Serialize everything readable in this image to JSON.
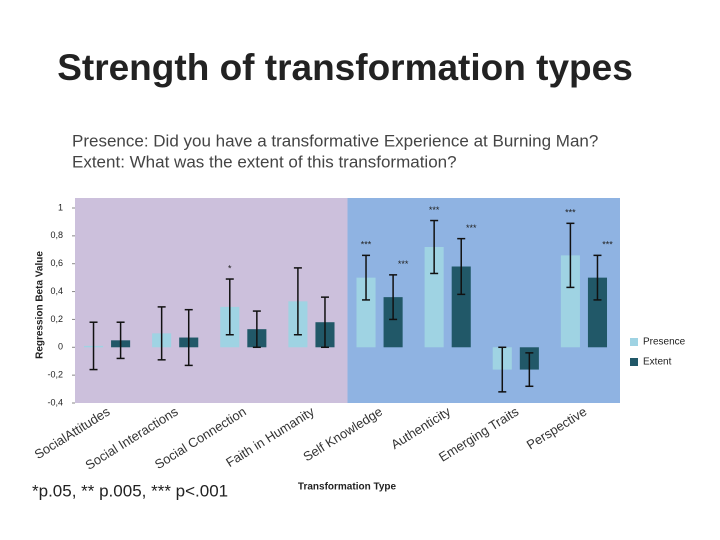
{
  "chart_data": {
    "type": "bar",
    "title": "Strength of transformation types",
    "subtitle": [
      "Presence: Did you have a transformative Experience at Burning Man?",
      "Extent: What was the extent of this transformation?"
    ],
    "y_label": "Regression Beta Value",
    "x_label": "Transformation Type",
    "footnote": "*p.05, ** p.005, *** p<.001",
    "categories": [
      "SocialAttitudes",
      "Social Interactions",
      "Social Connection",
      "Faith in Humanity",
      "Self Knowledge",
      "Authenticity",
      "Emerging Traits",
      "Perspective"
    ],
    "series": [
      {
        "name": "Presence",
        "color": "#9fd3e3",
        "values": [
          0.01,
          0.1,
          0.29,
          0.33,
          0.5,
          0.72,
          -0.16,
          0.66
        ],
        "errors": [
          0.17,
          0.19,
          0.2,
          0.24,
          0.16,
          0.19,
          0.16,
          0.23
        ],
        "annotations": [
          null,
          null,
          "*",
          null,
          "***",
          "***",
          null,
          "***"
        ]
      },
      {
        "name": "Extent",
        "color": "#215868",
        "values": [
          0.05,
          0.07,
          0.13,
          0.18,
          0.36,
          0.58,
          -0.16,
          0.5
        ],
        "errors": [
          0.13,
          0.2,
          0.13,
          0.18,
          0.16,
          0.2,
          0.12,
          0.16
        ],
        "annotations": [
          null,
          null,
          null,
          null,
          "***",
          "***",
          null,
          "***"
        ]
      }
    ],
    "ylim": [
      -0.4,
      1
    ],
    "yticks": [
      {
        "value": -0.4,
        "label": "-0,4"
      },
      {
        "value": -0.2,
        "label": "-0,2"
      },
      0,
      {
        "value": 0.2,
        "label": "0,2"
      },
      {
        "value": 0.4,
        "label": "0,4"
      },
      {
        "value": 0.6,
        "label": "0,6"
      },
      {
        "value": 0.8,
        "label": "0,8"
      },
      1
    ],
    "legend": "right"
  }
}
